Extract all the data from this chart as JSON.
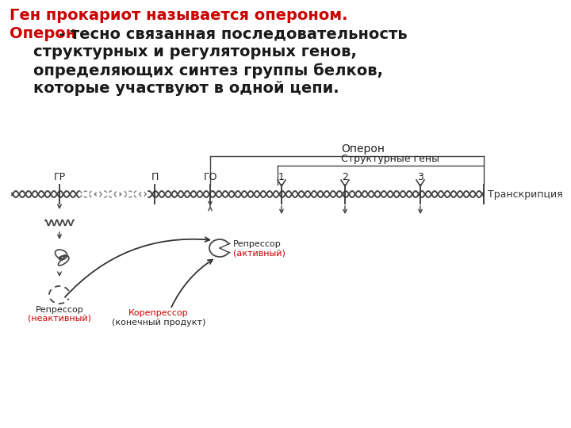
{
  "bg_color": "#ffffff",
  "title_line1": "Ген прокариот называется опероном.",
  "title_line2_red": "Оперон",
  "title_line2_black": "- тесно связанная последовательность",
  "title_line3": "структурных и регуляторных генов,",
  "title_line4": "определяющих синтез группы белков,",
  "title_line5": "которые участвуют в одной цепи.",
  "red_color": "#cc0000",
  "black_color": "#1a1a1a",
  "gray_color": "#555555",
  "label_GR": "ГР",
  "label_P": "П",
  "label_GO": "ГО",
  "label_1": "1",
  "label_2": "2",
  "label_3": "3",
  "label_operon": "Оперон",
  "label_struct": "Структурные гены",
  "label_transcript": "Транскрипция",
  "text_fontsize": 14,
  "small_fontsize": 9,
  "diagram_fontsize": 8
}
